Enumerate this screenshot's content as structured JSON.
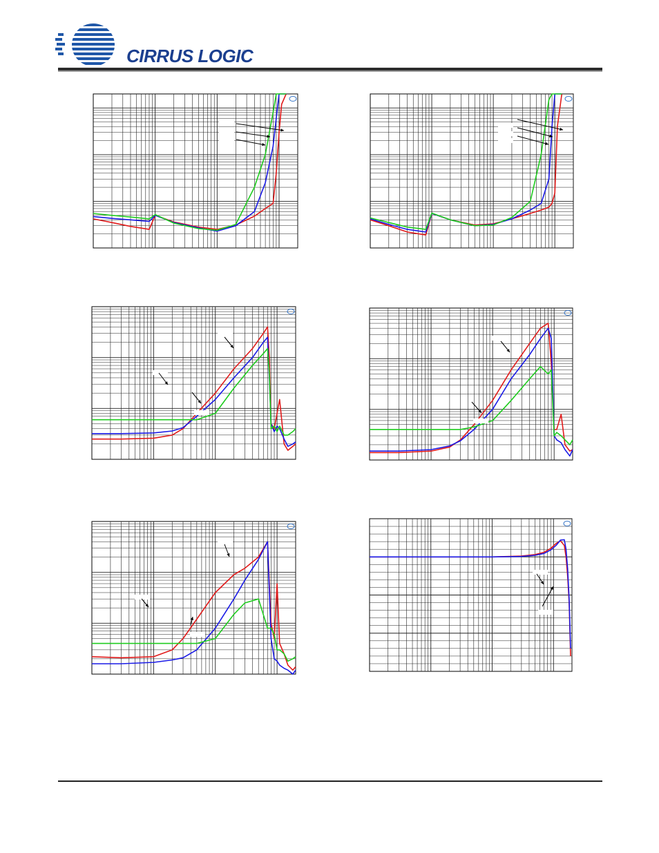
{
  "brand": {
    "name": "CIRRUS LOGIC",
    "registered_mark": "®",
    "colors": {
      "logo_blue": "#1f57a8",
      "text_blue": "#1b3f8f"
    }
  },
  "colors": {
    "red": "#e11b1b",
    "blue": "#1a1ae6",
    "green": "#1fcc1f",
    "grid": "#222222",
    "ap_mark": "#3a78c9"
  },
  "chart_data": [
    {
      "type": "line",
      "xscale": "log",
      "yscale": "log",
      "x": [
        1,
        2,
        4,
        8,
        10,
        20,
        50,
        100,
        200,
        400,
        600,
        800,
        900,
        1000,
        1100,
        1300
      ],
      "series": [
        {
          "color": "red",
          "values": [
            0.0042,
            0.0035,
            0.0029,
            0.0025,
            0.005,
            0.0036,
            0.0028,
            0.0025,
            0.0031,
            0.0048,
            0.007,
            0.009,
            0.04,
            0.3,
            1.2,
            2.0
          ]
        },
        {
          "color": "blue",
          "values": [
            0.0047,
            0.0043,
            0.004,
            0.0037,
            0.005,
            0.0035,
            0.0027,
            0.0023,
            0.003,
            0.006,
            0.025,
            0.15,
            0.6,
            2.0,
            2.0,
            2.0
          ]
        },
        {
          "color": "green",
          "values": [
            0.0055,
            0.005,
            0.0046,
            0.0042,
            0.0052,
            0.0034,
            0.0026,
            0.0024,
            0.0032,
            0.02,
            0.1,
            0.8,
            2.0,
            2.0,
            2.0,
            2.0
          ]
        }
      ],
      "annotations": 3
    },
    {
      "type": "line",
      "xscale": "log",
      "yscale": "log",
      "x": [
        1,
        2,
        4,
        8,
        10,
        20,
        50,
        100,
        200,
        400,
        600,
        800,
        900,
        1000,
        1100,
        1300
      ],
      "series": [
        {
          "color": "red",
          "values": [
            0.004,
            0.003,
            0.0022,
            0.0019,
            0.0055,
            0.004,
            0.0031,
            0.0033,
            0.0042,
            0.0055,
            0.0065,
            0.0075,
            0.009,
            0.015,
            0.4,
            2.0
          ]
        },
        {
          "color": "blue",
          "values": [
            0.0042,
            0.0032,
            0.0025,
            0.0022,
            0.0055,
            0.004,
            0.003,
            0.0032,
            0.0042,
            0.0065,
            0.009,
            0.03,
            0.4,
            2.0,
            2.0,
            2.0
          ]
        },
        {
          "color": "green",
          "values": [
            0.0044,
            0.0035,
            0.0028,
            0.0025,
            0.0056,
            0.004,
            0.003,
            0.0031,
            0.0045,
            0.01,
            0.1,
            1.5,
            2.0,
            2.0,
            2.0,
            2.0
          ]
        }
      ],
      "annotations": 3
    },
    {
      "type": "line",
      "xscale": "log",
      "yscale": "log",
      "x": [
        1,
        3,
        10,
        20,
        30,
        50,
        100,
        200,
        400,
        600,
        700,
        750,
        800,
        900,
        1000,
        1100,
        1300,
        1500,
        1800,
        2000
      ],
      "series": [
        {
          "color": "red",
          "values": [
            0.0025,
            0.0025,
            0.0026,
            0.003,
            0.004,
            0.008,
            0.02,
            0.06,
            0.15,
            0.3,
            0.4,
            0.1,
            0.005,
            0.004,
            0.008,
            0.015,
            0.002,
            0.0015,
            0.0018,
            0.002
          ]
        },
        {
          "color": "blue",
          "values": [
            0.0032,
            0.0032,
            0.0033,
            0.0036,
            0.0042,
            0.007,
            0.015,
            0.04,
            0.1,
            0.2,
            0.25,
            0.04,
            0.005,
            0.0035,
            0.0045,
            0.004,
            0.0025,
            0.0018,
            0.002,
            0.0022
          ]
        },
        {
          "color": "green",
          "values": [
            0.006,
            0.006,
            0.006,
            0.006,
            0.006,
            0.006,
            0.008,
            0.025,
            0.07,
            0.12,
            0.15,
            0.05,
            0.004,
            0.0045,
            0.0035,
            0.0045,
            0.003,
            0.003,
            0.0035,
            0.004
          ]
        }
      ],
      "annotations": 3
    },
    {
      "type": "line",
      "xscale": "log",
      "yscale": "log",
      "x": [
        1,
        3,
        10,
        20,
        30,
        50,
        100,
        200,
        400,
        600,
        800,
        900,
        1000,
        1100,
        1300,
        1500,
        1800,
        2000
      ],
      "series": [
        {
          "color": "red",
          "values": [
            0.0014,
            0.0014,
            0.0015,
            0.0018,
            0.0025,
            0.005,
            0.015,
            0.06,
            0.2,
            0.4,
            0.5,
            0.08,
            0.004,
            0.004,
            0.008,
            0.002,
            0.0015,
            0.0016
          ]
        },
        {
          "color": "blue",
          "values": [
            0.0015,
            0.0015,
            0.0016,
            0.0019,
            0.0024,
            0.004,
            0.01,
            0.04,
            0.12,
            0.25,
            0.4,
            0.25,
            0.003,
            0.0025,
            0.0022,
            0.0016,
            0.0012,
            0.0016
          ]
        },
        {
          "color": "green",
          "values": [
            0.004,
            0.004,
            0.004,
            0.004,
            0.004,
            0.0045,
            0.006,
            0.015,
            0.04,
            0.07,
            0.05,
            0.06,
            0.003,
            0.0035,
            0.003,
            0.0025,
            0.002,
            0.0025
          ]
        }
      ],
      "annotations": 2
    },
    {
      "type": "line",
      "xscale": "log",
      "yscale": "log",
      "x": [
        1,
        3,
        10,
        20,
        30,
        50,
        100,
        200,
        300,
        500,
        700,
        800,
        900,
        1000,
        1100,
        1300,
        1500,
        1800,
        2000
      ],
      "series": [
        {
          "color": "red",
          "values": [
            0.0022,
            0.0021,
            0.0022,
            0.003,
            0.005,
            0.012,
            0.04,
            0.09,
            0.12,
            0.2,
            0.4,
            0.01,
            0.005,
            0.06,
            0.004,
            0.0025,
            0.0015,
            0.0012,
            0.0014
          ]
        },
        {
          "color": "blue",
          "values": [
            0.0016,
            0.0016,
            0.0017,
            0.0019,
            0.0021,
            0.003,
            0.008,
            0.03,
            0.07,
            0.18,
            0.4,
            0.005,
            0.002,
            0.0018,
            0.0015,
            0.0013,
            0.0012,
            0.001,
            0.0012
          ]
        },
        {
          "color": "green",
          "values": [
            0.004,
            0.004,
            0.004,
            0.004,
            0.004,
            0.004,
            0.005,
            0.015,
            0.025,
            0.03,
            0.008,
            0.008,
            0.006,
            0.003,
            0.003,
            0.0025,
            0.0018,
            0.002,
            0.0022
          ]
        }
      ],
      "annotations": 3
    },
    {
      "type": "line",
      "xscale": "log",
      "yscale": "linear",
      "x": [
        1,
        10,
        100,
        300,
        500,
        700,
        900,
        1100,
        1300,
        1500,
        1600,
        1700,
        1800,
        1900
      ],
      "series": [
        {
          "color": "red",
          "values": [
            0.0,
            0.0,
            0.0,
            0.02,
            0.06,
            0.12,
            0.22,
            0.35,
            0.42,
            0.3,
            0.0,
            -0.5,
            -1.2,
            -2.6
          ]
        },
        {
          "color": "blue",
          "values": [
            0.0,
            0.0,
            0.0,
            0.01,
            0.04,
            0.09,
            0.18,
            0.3,
            0.44,
            0.45,
            0.2,
            -0.3,
            -1.1,
            -2.4
          ]
        }
      ],
      "annotations": 2
    }
  ]
}
